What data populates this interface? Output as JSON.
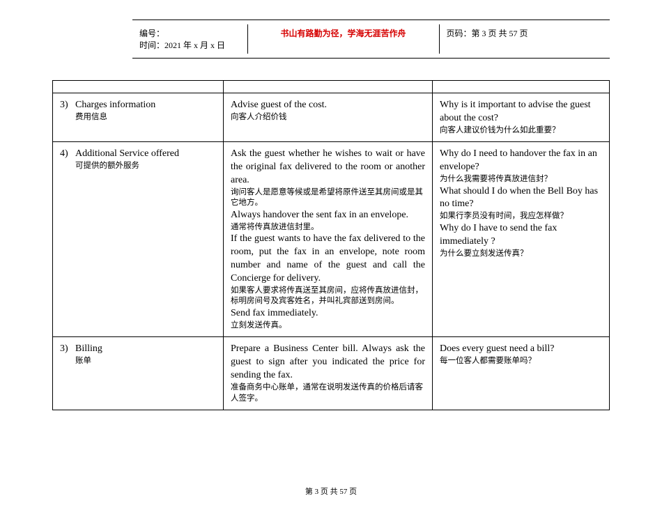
{
  "header": {
    "bianhao_label": "编号：",
    "time_label": "时间：",
    "time_value": "2021 年 x 月 x 日",
    "motto": "书山有路勤为径，学海无涯苦作舟",
    "page_label": "页码：",
    "page_value": "第 3 页 共 57 页"
  },
  "rows": [
    {
      "num": "3)",
      "title_en": "Charges information",
      "title_cn": "费用信息",
      "mid": [
        {
          "en": "Advise guest of the cost.",
          "cn": "向客人介绍价钱"
        }
      ],
      "right": [
        {
          "en": "Why is it important to advise the guest about the cost?",
          "cn": "向客人建议价钱为什么如此重要？"
        }
      ]
    },
    {
      "num": "4)",
      "title_en": "Additional Service offered",
      "title_cn": "可提供的额外服务",
      "mid": [
        {
          "en": "Ask the guest whether he wishes to wait or have the original fax delivered to the room or another area.",
          "cn": "询问客人是愿意等候或是希望将原件送至其房间或是其它地方。",
          "just": true
        },
        {
          "en": "Always handover the sent fax in an envelope.",
          "cn": "通常将传真放进信封里。",
          "just": true
        },
        {
          "en": "If the guest wants to have the fax delivered to the room, put the fax in an envelope, note room number and name of the guest and call the Concierge for delivery.",
          "cn": "如果客人要求将传真送至其房间，应将传真放进信封，标明房间号及宾客姓名，并叫礼宾部送到房间。",
          "just": true
        },
        {
          "en": "Send fax immediately.",
          "cn": "立刻发送传真。"
        }
      ],
      "right": [
        {
          "en": "Why do I need to handover the fax in an envelope?",
          "cn": "为什么我需要将传真放进信封？"
        },
        {
          "en": "What should I do when the Bell Boy has no time?",
          "cn": "如果行李员没有时间，我应怎样做？"
        },
        {
          "en": "Why do I have to send the fax immediately ?",
          "cn": "为什么要立刻发送传真？"
        }
      ]
    },
    {
      "num": "3)",
      "title_en": "Billing",
      "title_cn": "账单",
      "mid": [
        {
          "en": "Prepare a Business Center bill. Always ask the guest to sign after you indicated the price for sending the fax.",
          "cn": "准备商务中心账单，通常在说明发送传真的价格后请客人签字。",
          "just": true
        }
      ],
      "right": [
        {
          "en": "Does every guest need a bill?",
          "cn": "每一位客人都需要账单吗？"
        }
      ]
    }
  ],
  "footer": "第 3 页 共 57 页"
}
